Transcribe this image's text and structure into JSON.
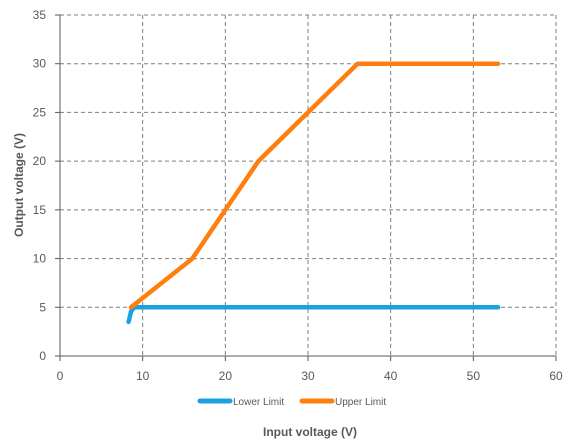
{
  "chart_data": {
    "type": "line",
    "title": "",
    "xlabel": "Input voltage (V)",
    "ylabel": "Output voltage (V)",
    "xlim": [
      0,
      60
    ],
    "ylim": [
      0,
      35
    ],
    "xticks": [
      0,
      10,
      20,
      30,
      40,
      50,
      60
    ],
    "yticks": [
      0,
      5,
      10,
      15,
      20,
      25,
      30,
      35
    ],
    "grid": true,
    "legend_position": "bottom",
    "series": [
      {
        "name": "Lower Limit",
        "color": "#1ba1e2",
        "points": [
          [
            8.3,
            3.5
          ],
          [
            8.6,
            4.6
          ],
          [
            9.0,
            5.0
          ],
          [
            53,
            5.0
          ]
        ]
      },
      {
        "name": "Upper Limit",
        "color": "#ff7f0e",
        "points": [
          [
            8.6,
            5.0
          ],
          [
            16,
            10
          ],
          [
            24,
            20
          ],
          [
            36,
            30
          ],
          [
            53,
            30
          ]
        ]
      }
    ]
  }
}
